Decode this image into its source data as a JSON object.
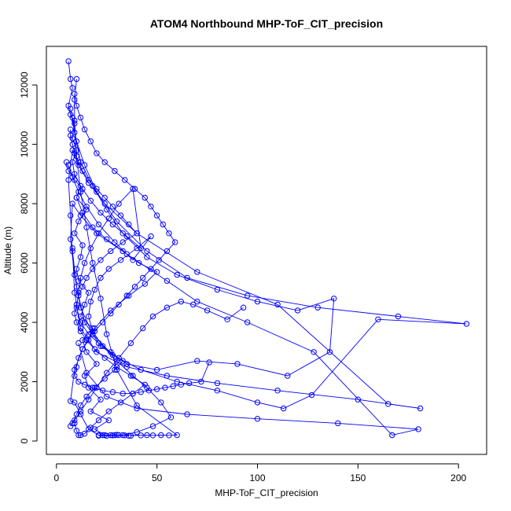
{
  "chart_data": {
    "type": "line",
    "title": "ATOM4 Northbound MHP-ToF_CIT_precision",
    "xlabel": "MHP-ToF_CIT_precision",
    "ylabel": "Altitude (m)",
    "xlim": [
      -5,
      214
    ],
    "ylim": [
      -450,
      13300
    ],
    "x_ticks": [
      0,
      50,
      100,
      150,
      200
    ],
    "y_ticks": [
      0,
      2000,
      4000,
      6000,
      8000,
      10000,
      12000
    ],
    "x_tick_labels": [
      "0",
      "50",
      "100",
      "150",
      "200"
    ],
    "y_tick_labels": [
      "0",
      "2000",
      "4000",
      "6000",
      "8000",
      "10000",
      "12000"
    ],
    "grid": false,
    "series_color": "#0000ff",
    "series": [
      {
        "name": "",
        "x": [
          6,
          7,
          8,
          6,
          7,
          9,
          8,
          10,
          8,
          9,
          12,
          10,
          15,
          11,
          9,
          13,
          12,
          10,
          11,
          16,
          14,
          12,
          18,
          13,
          15,
          20,
          14,
          16,
          22,
          17,
          26,
          19,
          24,
          21,
          28,
          23,
          30,
          25,
          34,
          29,
          36,
          31,
          42,
          37,
          45,
          48,
          52,
          56,
          60,
          40,
          30,
          25,
          22,
          18,
          15,
          12,
          10,
          9,
          9,
          10
        ],
        "y": [
          12800,
          12200,
          11900,
          11300,
          11000,
          10700,
          10200,
          9800,
          9400,
          9000,
          8600,
          8200,
          7800,
          7400,
          7000,
          6600,
          6200,
          5800,
          5400,
          5000,
          4600,
          4200,
          3800,
          3400,
          3000,
          2600,
          2200,
          1800,
          1400,
          1000,
          700,
          400,
          200,
          180,
          190,
          200,
          210,
          180,
          190,
          200,
          180,
          200,
          190,
          180,
          200,
          190,
          200,
          190,
          200,
          1200,
          2400,
          3600,
          4800,
          6000,
          7200,
          8400,
          9600,
          10800,
          11500,
          12200
        ]
      },
      {
        "name": "",
        "x": [
          7,
          9,
          12,
          18,
          25,
          33,
          45,
          60,
          80,
          100,
          120,
          138,
          136,
          115,
          90,
          70,
          50,
          35,
          22,
          14,
          10,
          8,
          7,
          6,
          8,
          11,
          16,
          24,
          40,
          70,
          110,
          165,
          181,
          150,
          110,
          80,
          55,
          35,
          20,
          12,
          9,
          8
        ],
        "y": [
          11200,
          10400,
          9400,
          8600,
          7800,
          7000,
          6200,
          5600,
          5100,
          4700,
          4400,
          4800,
          3000,
          2200,
          2600,
          2700,
          2400,
          2600,
          3200,
          4000,
          5200,
          6400,
          7600,
          8800,
          9800,
          9300,
          8700,
          8000,
          7000,
          5700,
          4600,
          1250,
          1100,
          1400,
          1700,
          1950,
          2200,
          2500,
          3000,
          3800,
          5000,
          6500
        ]
      },
      {
        "name": "",
        "x": [
          8,
          10,
          14,
          20,
          30,
          45,
          65,
          95,
          130,
          170,
          204,
          160,
          127,
          113,
          100,
          80,
          60,
          42,
          28,
          18,
          12,
          9,
          7,
          8,
          12,
          20,
          35,
          55,
          70,
          95,
          128,
          167,
          180,
          140,
          100,
          65,
          40,
          25,
          15,
          11
        ],
        "y": [
          10900,
          10100,
          9300,
          8400,
          7400,
          6400,
          5500,
          4900,
          4500,
          4200,
          3950,
          4100,
          1550,
          1100,
          1300,
          1700,
          2000,
          2400,
          2900,
          3600,
          4500,
          5600,
          6800,
          8000,
          7600,
          7000,
          6300,
          5400,
          4700,
          4000,
          3000,
          200,
          400,
          600,
          750,
          900,
          1100,
          1500,
          2300,
          3300
        ]
      },
      {
        "name": "",
        "x": [
          6,
          8,
          11,
          15,
          21,
          29,
          38,
          47,
          40,
          32,
          26,
          22,
          19,
          17,
          16,
          18,
          23,
          30,
          38,
          45,
          52,
          57,
          48,
          40,
          33,
          27,
          21,
          16,
          12,
          9,
          7,
          9,
          13,
          19,
          27,
          36,
          44,
          50,
          41,
          33,
          25,
          18,
          13,
          10
        ],
        "y": [
          9300,
          8900,
          8400,
          7900,
          7300,
          6700,
          6100,
          6900,
          6500,
          6100,
          5800,
          5500,
          5100,
          4700,
          4200,
          3700,
          3200,
          2700,
          2200,
          1800,
          1300,
          800,
          500,
          300,
          200,
          200,
          200,
          400,
          900,
          1300,
          1350,
          2400,
          3100,
          3800,
          4400,
          4900,
          5300,
          5700,
          6000,
          6400,
          6800,
          7200,
          7700,
          8200
        ]
      },
      {
        "name": "",
        "x": [
          5,
          6,
          9,
          13,
          17,
          22,
          28,
          35,
          42,
          38,
          31,
          26,
          21,
          17,
          14,
          12,
          11,
          10,
          12,
          16,
          21,
          27,
          33,
          29,
          24,
          19,
          15,
          12,
          10,
          8,
          7,
          9,
          12,
          16,
          20,
          25,
          31,
          37,
          43,
          48,
          55,
          62,
          68,
          75,
          85,
          93
        ],
        "y": [
          9400,
          9100,
          8800,
          8500,
          8100,
          7700,
          7300,
          6900,
          6500,
          8500,
          8000,
          7500,
          7000,
          6500,
          6000,
          5500,
          5000,
          4500,
          4000,
          3600,
          3300,
          3000,
          2700,
          2400,
          2100,
          1800,
          1500,
          1200,
          900,
          600,
          500,
          700,
          1000,
          1400,
          1800,
          2300,
          2800,
          3300,
          3800,
          4200,
          4500,
          4700,
          4600,
          4400,
          4100,
          4500
        ]
      },
      {
        "name": "",
        "x": [
          7,
          7,
          8,
          9,
          11,
          13,
          16,
          20,
          24,
          28,
          32,
          36,
          40,
          33,
          27,
          22,
          18,
          15,
          13,
          11,
          10,
          9,
          10,
          12,
          15,
          19,
          24,
          30,
          37,
          44,
          38,
          32,
          26,
          21,
          17,
          14,
          12,
          11,
          10,
          9
        ],
        "y": [
          10500,
          10300,
          10000,
          9700,
          9400,
          9100,
          8800,
          8500,
          8200,
          7900,
          7600,
          7300,
          7000,
          6700,
          6400,
          6100,
          5800,
          5500,
          5200,
          4900,
          4600,
          4300,
          4000,
          3700,
          3400,
          3100,
          2800,
          2500,
          2200,
          1900,
          1600,
          1300,
          1000,
          700,
          450,
          250,
          200,
          200,
          350,
          600
        ]
      },
      {
        "name": "",
        "x": [
          9,
          10,
          12,
          14,
          17,
          20,
          24,
          29,
          34,
          39,
          44,
          47,
          50,
          53,
          56,
          59,
          55,
          51,
          47,
          43,
          39,
          35,
          31,
          27,
          23,
          19,
          16,
          13,
          11,
          10,
          9,
          11,
          14,
          18,
          23,
          28,
          33,
          38,
          42,
          46,
          50,
          54,
          58,
          62,
          66,
          72,
          76
        ],
        "y": [
          11700,
          11300,
          10900,
          10500,
          10100,
          9700,
          9400,
          9100,
          8800,
          8500,
          8200,
          7900,
          7600,
          7300,
          7000,
          6700,
          6400,
          6100,
          5800,
          5500,
          5200,
          4900,
          4600,
          4300,
          4000,
          3700,
          3400,
          3100,
          2800,
          2500,
          2200,
          2000,
          1900,
          1800,
          1700,
          1650,
          1600,
          1600,
          1650,
          1700,
          1750,
          1800,
          1850,
          1900,
          1950,
          2000,
          2650
        ]
      }
    ]
  }
}
